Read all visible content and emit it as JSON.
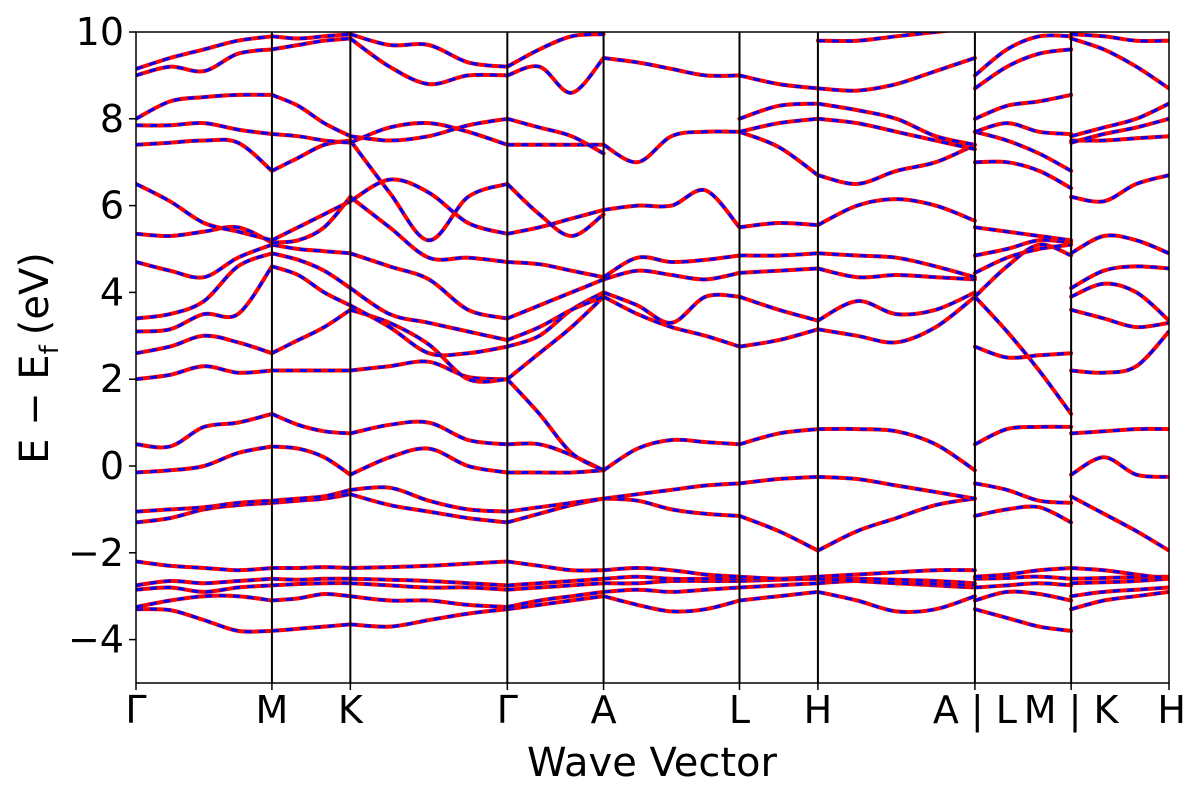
{
  "chart_data": {
    "type": "line",
    "xlabel": "Wave Vector",
    "ylabel": "E − E",
    "ylabel_sub": "f",
    "ylabel_unit": "(eV)",
    "ylim": [
      -5,
      10
    ],
    "yticks": [
      -4,
      -2,
      0,
      2,
      4,
      6,
      8,
      10
    ],
    "ytick_labels": [
      "−4",
      "−2",
      "0",
      "2",
      "4",
      "6",
      "8",
      "10"
    ],
    "xlim": [
      0,
      7.6
    ],
    "kpoints": [
      {
        "label": "Γ",
        "x": 0.0
      },
      {
        "label": "M",
        "x": 1.0
      },
      {
        "label": "K",
        "x": 1.577
      },
      {
        "label": "Γ",
        "x": 2.732
      },
      {
        "label": "A",
        "x": 3.44
      },
      {
        "label": "L",
        "x": 4.44
      },
      {
        "label": "H",
        "x": 5.017
      },
      {
        "label": "A | L",
        "x": 6.172
      },
      {
        "label": "M | K",
        "x": 6.88
      },
      {
        "label": "H",
        "x": 7.6
      }
    ],
    "vertical_lines": [
      1.0,
      1.577,
      2.732,
      3.44,
      4.44,
      5.017,
      6.172,
      6.88
    ],
    "colors": {
      "dataset_a": "#ff0000",
      "dataset_b": "#0000ff"
    },
    "segments": [
      {
        "from": "Γ",
        "to": "M",
        "x0": 0.0,
        "x1": 1.0,
        "bands": [
          [
            -3.3,
            -3.32,
            -3.55,
            -3.8,
            -3.8
          ],
          [
            -3.25,
            -3.1,
            -3.0,
            -3.0,
            -3.1
          ],
          [
            -2.85,
            -2.8,
            -2.9,
            -2.8,
            -2.75
          ],
          [
            -2.75,
            -2.65,
            -2.7,
            -2.65,
            -2.6
          ],
          [
            -2.2,
            -2.3,
            -2.35,
            -2.4,
            -2.35
          ],
          [
            -1.3,
            -1.2,
            -1.0,
            -0.9,
            -0.85
          ],
          [
            -1.05,
            -1.0,
            -0.95,
            -0.85,
            -0.8
          ],
          [
            -0.15,
            -0.1,
            0.0,
            0.3,
            0.45
          ],
          [
            0.5,
            0.45,
            0.9,
            1.0,
            1.2
          ],
          [
            2.0,
            2.1,
            2.3,
            2.15,
            2.2
          ],
          [
            2.6,
            2.75,
            3.0,
            2.85,
            2.6
          ],
          [
            3.1,
            3.15,
            3.5,
            3.5,
            4.6
          ],
          [
            3.4,
            3.5,
            3.8,
            4.6,
            4.9
          ],
          [
            4.7,
            4.5,
            4.35,
            4.8,
            5.1
          ],
          [
            5.35,
            5.3,
            5.4,
            5.5,
            5.15
          ],
          [
            6.5,
            6.1,
            5.6,
            5.4,
            5.2
          ],
          [
            7.4,
            7.45,
            7.5,
            7.45,
            6.8
          ],
          [
            7.85,
            7.85,
            7.9,
            7.75,
            7.65
          ],
          [
            8.0,
            8.4,
            8.5,
            8.55,
            8.55
          ],
          [
            9.0,
            9.2,
            9.1,
            9.5,
            9.6
          ],
          [
            9.15,
            9.4,
            9.6,
            9.8,
            9.9
          ]
        ]
      },
      {
        "from": "M",
        "to": "K",
        "x0": 1.0,
        "x1": 1.577,
        "bands": [
          [
            -3.8,
            -3.75,
            -3.7,
            -3.65
          ],
          [
            -3.1,
            -3.05,
            -2.95,
            -3.0
          ],
          [
            -2.75,
            -2.72,
            -2.7,
            -2.7
          ],
          [
            -2.6,
            -2.62,
            -2.6,
            -2.6
          ],
          [
            -2.35,
            -2.35,
            -2.33,
            -2.35
          ],
          [
            -0.85,
            -0.8,
            -0.75,
            -0.65
          ],
          [
            -0.8,
            -0.75,
            -0.7,
            -0.55
          ],
          [
            0.45,
            0.4,
            0.2,
            -0.2
          ],
          [
            1.2,
            0.95,
            0.8,
            0.75
          ],
          [
            2.2,
            2.2,
            2.2,
            2.2
          ],
          [
            2.6,
            2.9,
            3.2,
            3.6
          ],
          [
            4.6,
            4.4,
            4.0,
            3.7
          ],
          [
            4.9,
            4.75,
            4.5,
            4.1
          ],
          [
            5.1,
            5.0,
            4.95,
            4.9
          ],
          [
            5.15,
            5.2,
            5.5,
            6.2
          ],
          [
            5.2,
            5.5,
            5.8,
            6.1
          ],
          [
            6.8,
            7.1,
            7.4,
            7.5
          ],
          [
            7.65,
            7.6,
            7.5,
            7.45
          ],
          [
            8.55,
            8.3,
            7.9,
            7.6
          ],
          [
            9.6,
            9.7,
            9.8,
            9.85
          ],
          [
            9.9,
            9.85,
            9.9,
            9.95
          ]
        ]
      },
      {
        "from": "K",
        "to": "Γ",
        "x0": 1.577,
        "x1": 2.732,
        "bands": [
          [
            -3.65,
            -3.7,
            -3.55,
            -3.4,
            -3.3
          ],
          [
            -3.0,
            -3.1,
            -3.1,
            -3.2,
            -3.25
          ],
          [
            -2.7,
            -2.75,
            -2.8,
            -2.8,
            -2.85
          ],
          [
            -2.6,
            -2.62,
            -2.65,
            -2.7,
            -2.75
          ],
          [
            -2.35,
            -2.33,
            -2.3,
            -2.25,
            -2.2
          ],
          [
            -0.65,
            -0.9,
            -1.05,
            -1.2,
            -1.3
          ],
          [
            -0.55,
            -0.5,
            -0.8,
            -1.0,
            -1.05
          ],
          [
            -0.2,
            0.2,
            0.4,
            0.0,
            -0.15
          ],
          [
            0.75,
            0.95,
            1.0,
            0.6,
            0.5
          ],
          [
            2.2,
            2.3,
            2.4,
            2.05,
            2.0
          ],
          [
            3.6,
            3.3,
            2.8,
            2.0,
            2.0
          ],
          [
            3.7,
            3.2,
            2.6,
            2.6,
            2.75
          ],
          [
            4.1,
            3.5,
            3.3,
            3.1,
            2.9
          ],
          [
            4.9,
            4.6,
            4.3,
            3.6,
            3.4
          ],
          [
            6.2,
            5.5,
            4.8,
            4.8,
            4.7
          ],
          [
            6.1,
            6.6,
            6.3,
            5.6,
            5.35
          ],
          [
            7.5,
            6.3,
            5.2,
            6.2,
            6.5
          ],
          [
            7.45,
            7.8,
            7.9,
            7.7,
            7.4
          ],
          [
            7.6,
            7.5,
            7.6,
            7.85,
            8.0
          ],
          [
            9.85,
            9.2,
            8.8,
            9.0,
            9.0
          ],
          [
            9.95,
            9.7,
            9.7,
            9.3,
            9.2
          ]
        ]
      },
      {
        "from": "Γ",
        "to": "A",
        "x0": 2.732,
        "x1": 3.44,
        "bands": [
          [
            -3.3,
            -3.2,
            -3.1,
            -3.0
          ],
          [
            -3.25,
            -3.1,
            -3.0,
            -2.9
          ],
          [
            -2.85,
            -2.8,
            -2.75,
            -2.7
          ],
          [
            -2.75,
            -2.7,
            -2.65,
            -2.6
          ],
          [
            -2.2,
            -2.3,
            -2.4,
            -2.4
          ],
          [
            -1.3,
            -1.1,
            -0.9,
            -0.75
          ],
          [
            -1.05,
            -0.95,
            -0.85,
            -0.75
          ],
          [
            -0.15,
            -0.15,
            -0.15,
            -0.1
          ],
          [
            0.5,
            0.5,
            0.25,
            -0.1
          ],
          [
            2.0,
            1.2,
            0.3,
            -0.1
          ],
          [
            2.0,
            2.6,
            3.2,
            3.9
          ],
          [
            2.75,
            3.0,
            3.6,
            4.0
          ],
          [
            2.9,
            3.2,
            3.6,
            3.9
          ],
          [
            3.4,
            3.7,
            4.0,
            4.3
          ],
          [
            4.7,
            4.65,
            4.5,
            4.35
          ],
          [
            5.35,
            5.5,
            5.7,
            5.9
          ],
          [
            6.5,
            5.8,
            5.3,
            5.8
          ],
          [
            7.4,
            7.4,
            7.4,
            7.4
          ],
          [
            8.0,
            7.8,
            7.6,
            7.2
          ],
          [
            9.0,
            9.2,
            8.6,
            9.4
          ],
          [
            9.2,
            9.6,
            9.9,
            9.95
          ]
        ]
      },
      {
        "from": "A",
        "to": "L",
        "x0": 3.44,
        "x1": 4.44,
        "bands": [
          [
            -3.0,
            -3.2,
            -3.35,
            -3.3,
            -3.1
          ],
          [
            -2.9,
            -2.85,
            -2.9,
            -2.85,
            -2.8
          ],
          [
            -2.7,
            -2.7,
            -2.65,
            -2.65,
            -2.65
          ],
          [
            -2.6,
            -2.55,
            -2.6,
            -2.6,
            -2.6
          ],
          [
            -2.4,
            -2.35,
            -2.4,
            -2.5,
            -2.55
          ],
          [
            -0.75,
            -0.8,
            -1.0,
            -1.1,
            -1.15
          ],
          [
            -0.75,
            -0.65,
            -0.55,
            -0.45,
            -0.4
          ],
          [
            -0.1,
            0.4,
            0.6,
            0.55,
            0.5
          ],
          [
            3.9,
            3.5,
            3.2,
            3.0,
            2.75
          ],
          [
            4.0,
            3.7,
            3.3,
            3.9,
            3.9
          ],
          [
            4.3,
            4.5,
            4.4,
            4.3,
            4.45
          ],
          [
            4.35,
            4.8,
            4.7,
            4.75,
            4.85
          ],
          [
            5.9,
            6.0,
            6.0,
            6.35,
            5.5
          ],
          [
            7.4,
            7.0,
            7.6,
            7.7,
            7.7
          ],
          [
            9.4,
            9.3,
            9.15,
            9.0,
            9.0
          ]
        ]
      },
      {
        "from": "L",
        "to": "H",
        "x0": 4.44,
        "x1": 5.017,
        "bands": [
          [
            -3.1,
            -3.0,
            -2.9
          ],
          [
            -2.8,
            -2.75,
            -2.7
          ],
          [
            -2.65,
            -2.62,
            -2.6
          ],
          [
            -2.6,
            -2.6,
            -2.55
          ],
          [
            -2.55,
            -2.6,
            -2.6
          ],
          [
            -1.15,
            -1.5,
            -1.95
          ],
          [
            -0.4,
            -0.3,
            -0.25
          ],
          [
            0.5,
            0.75,
            0.85
          ],
          [
            2.75,
            2.9,
            3.15
          ],
          [
            3.9,
            3.6,
            3.35
          ],
          [
            4.45,
            4.5,
            4.55
          ],
          [
            4.85,
            4.85,
            4.9
          ],
          [
            5.5,
            5.6,
            5.55
          ],
          [
            7.7,
            7.35,
            6.7
          ],
          [
            7.7,
            7.9,
            8.0
          ],
          [
            8.0,
            8.3,
            8.35
          ],
          [
            9.0,
            8.8,
            8.7
          ]
        ]
      },
      {
        "from": "H",
        "to": "A",
        "x0": 5.017,
        "x1": 6.172,
        "bands": [
          [
            -2.9,
            -3.1,
            -3.35,
            -3.3,
            -3.0
          ],
          [
            -2.7,
            -2.65,
            -2.7,
            -2.75,
            -2.8
          ],
          [
            -2.6,
            -2.6,
            -2.62,
            -2.65,
            -2.7
          ],
          [
            -2.55,
            -2.5,
            -2.45,
            -2.4,
            -2.4
          ],
          [
            -2.6,
            -2.65,
            -2.7,
            -2.72,
            -2.75
          ],
          [
            -1.95,
            -1.5,
            -1.2,
            -0.9,
            -0.75
          ],
          [
            -0.25,
            -0.3,
            -0.45,
            -0.6,
            -0.75
          ],
          [
            0.85,
            0.85,
            0.8,
            0.5,
            -0.1
          ],
          [
            3.15,
            3.0,
            2.85,
            3.2,
            3.9
          ],
          [
            3.35,
            3.8,
            3.5,
            3.6,
            4.0
          ],
          [
            4.55,
            4.35,
            4.4,
            4.35,
            4.3
          ],
          [
            4.9,
            4.85,
            4.8,
            4.6,
            4.35
          ],
          [
            5.55,
            6.0,
            6.15,
            6.0,
            5.65
          ],
          [
            6.7,
            6.5,
            6.8,
            7.0,
            7.4
          ],
          [
            8.0,
            7.9,
            7.7,
            7.5,
            7.3
          ],
          [
            8.35,
            8.2,
            8.0,
            7.6,
            7.4
          ],
          [
            8.7,
            8.65,
            8.8,
            9.1,
            9.4
          ],
          [
            9.8,
            9.8,
            9.9,
            10.0,
            10.1
          ]
        ]
      },
      {
        "from": "L",
        "to": "M",
        "x0": 6.172,
        "x1": 6.88,
        "bands": [
          [
            -3.3,
            -3.5,
            -3.7,
            -3.8
          ],
          [
            -3.1,
            -2.9,
            -2.95,
            -3.1
          ],
          [
            -2.8,
            -2.75,
            -2.7,
            -2.75
          ],
          [
            -2.6,
            -2.58,
            -2.55,
            -2.6
          ],
          [
            -2.55,
            -2.5,
            -2.4,
            -2.35
          ],
          [
            -1.15,
            -1.0,
            -0.95,
            -1.3
          ],
          [
            -0.4,
            -0.55,
            -0.8,
            -0.85
          ],
          [
            0.5,
            0.85,
            0.9,
            0.9
          ],
          [
            2.75,
            2.5,
            2.55,
            2.6
          ],
          [
            3.9,
            3.1,
            2.2,
            1.2
          ],
          [
            3.9,
            4.6,
            5.1,
            4.85
          ],
          [
            4.45,
            4.8,
            5.0,
            5.1
          ],
          [
            4.85,
            5.0,
            5.2,
            5.15
          ],
          [
            5.5,
            5.4,
            5.3,
            5.2
          ],
          [
            7.0,
            7.0,
            6.8,
            6.4
          ],
          [
            7.7,
            7.5,
            7.2,
            6.8
          ],
          [
            7.7,
            7.9,
            7.7,
            7.65
          ],
          [
            8.0,
            8.3,
            8.4,
            8.55
          ],
          [
            8.7,
            9.2,
            9.5,
            9.6
          ],
          [
            9.0,
            9.6,
            9.9,
            9.9
          ]
        ]
      },
      {
        "from": "K",
        "to": "H",
        "x0": 6.88,
        "x1": 7.6,
        "bands": [
          [
            -3.3,
            -3.1,
            -3.0,
            -2.9
          ],
          [
            -3.0,
            -2.9,
            -2.85,
            -2.8
          ],
          [
            -2.7,
            -2.68,
            -2.65,
            -2.6
          ],
          [
            -2.6,
            -2.58,
            -2.56,
            -2.55
          ],
          [
            -2.35,
            -2.4,
            -2.5,
            -2.6
          ],
          [
            -0.7,
            -1.1,
            -1.5,
            -1.95
          ],
          [
            -0.2,
            0.2,
            -0.2,
            -0.25
          ],
          [
            0.75,
            0.8,
            0.85,
            0.85
          ],
          [
            2.2,
            2.15,
            2.3,
            3.1
          ],
          [
            3.6,
            3.4,
            3.2,
            3.3
          ],
          [
            3.9,
            4.2,
            4.0,
            3.35
          ],
          [
            4.1,
            4.5,
            4.6,
            4.55
          ],
          [
            4.9,
            5.3,
            5.2,
            4.9
          ],
          [
            6.2,
            6.1,
            6.5,
            6.7
          ],
          [
            7.5,
            7.5,
            7.55,
            7.6
          ],
          [
            7.45,
            7.65,
            7.8,
            8.0
          ],
          [
            7.6,
            7.8,
            8.0,
            8.35
          ],
          [
            9.85,
            9.6,
            9.2,
            8.7
          ],
          [
            9.95,
            9.9,
            9.8,
            9.8
          ]
        ]
      }
    ]
  }
}
